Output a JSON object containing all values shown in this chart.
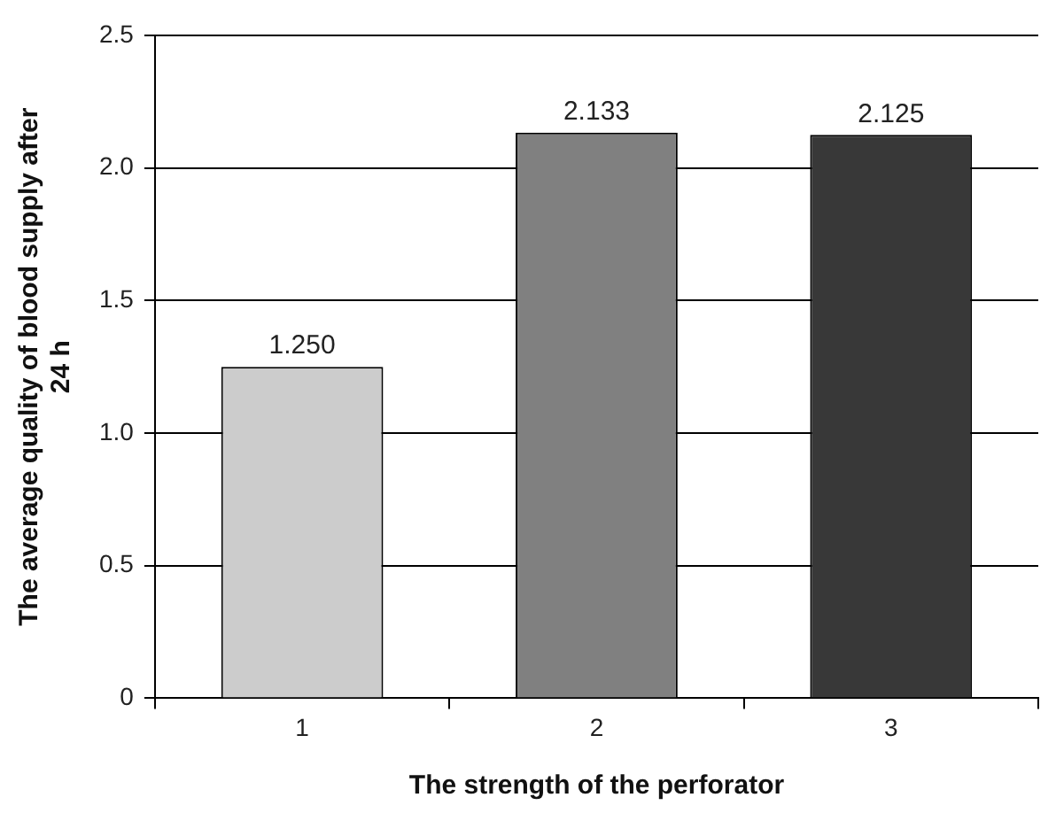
{
  "chart_data": {
    "type": "bar",
    "xlabel": "The strength of the perforator",
    "ylabel": "The average quality of blood supply after 24 h",
    "categories": [
      "1",
      "2",
      "3"
    ],
    "values": [
      1.25,
      2.133,
      2.125
    ],
    "value_labels": [
      "1.250",
      "2.133",
      "2.125"
    ],
    "colors": [
      "#cccccc",
      "#808080",
      "#383838"
    ],
    "ylim": [
      0,
      2.5
    ],
    "yticks": [
      0,
      0.5,
      {
        "value": 1,
        "label": "1.0"
      },
      1.5,
      {
        "value": 2,
        "label": "2.0"
      },
      2.5
    ],
    "grid": "y",
    "legend": false
  }
}
